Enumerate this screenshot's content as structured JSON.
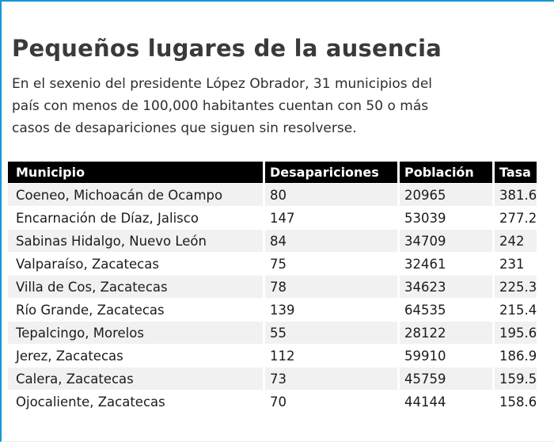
{
  "colors": {
    "frame_accent": "#2b8fc3",
    "table_header_bg": "#000000",
    "table_header_text": "#ffffff",
    "zebra_row_bg": "#f1f1f1",
    "title_text": "#3a3a3a",
    "body_text": "#1b1b1b"
  },
  "header": {
    "title": "Pequeños lugares de la ausencia",
    "description_lines": [
      "En el sexenio del presidente López Obrador, 31 municipios del",
      "país con menos de 100,000 habitantes cuentan con 50 o más",
      "casos de desapariciones que siguen sin resolverse."
    ]
  },
  "chart_data": {
    "type": "table",
    "title": "Pequeños lugares de la ausencia",
    "subtitle": "En el sexenio del presidente López Obrador, 31 municipios del país con menos de 100,000 habitantes cuentan con 50 o más casos de desapariciones que siguen sin resolverse.",
    "columns": [
      "Municipio",
      "Desapariciones",
      "Población",
      "Tasa"
    ],
    "rows": [
      [
        "Coeneo, Michoacán de Ocampo",
        "80",
        "20965",
        "381.6"
      ],
      [
        "Encarnación de Díaz, Jalisco",
        "147",
        "53039",
        "277.2"
      ],
      [
        "Sabinas Hidalgo, Nuevo León",
        "84",
        "34709",
        "242"
      ],
      [
        "Valparaíso, Zacatecas",
        "75",
        "32461",
        "231"
      ],
      [
        "Villa de Cos, Zacatecas",
        "78",
        "34623",
        "225.3"
      ],
      [
        "Río Grande, Zacatecas",
        "139",
        "64535",
        "215.4"
      ],
      [
        "Tepalcingo, Morelos",
        "55",
        "28122",
        "195.6"
      ],
      [
        "Jerez, Zacatecas",
        "112",
        "59910",
        "186.9"
      ],
      [
        "Calera, Zacatecas",
        "73",
        "45759",
        "159.5"
      ],
      [
        "Ojocaliente, Zacatecas",
        "70",
        "44144",
        "158.6"
      ]
    ],
    "layout": {
      "zebra_striping": true,
      "first_row_shaded": true,
      "column_alignment": [
        "left",
        "left",
        "left",
        "left"
      ]
    }
  }
}
